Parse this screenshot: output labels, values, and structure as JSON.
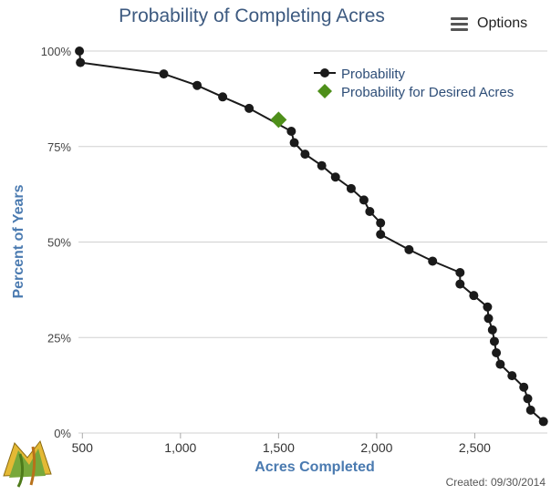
{
  "header": {
    "title": "Probability of Completing Acres",
    "options_label": "Options"
  },
  "footer": {
    "created": "Created: 09/30/2014"
  },
  "colors": {
    "title": "#3d5a80",
    "axis_title": "#4a7ab0",
    "series": "#1a1a1a",
    "desired": "#4e8f1a",
    "grid": "#d0d0d0"
  },
  "chart_data": {
    "type": "line",
    "title": "Probability of Completing Acres",
    "xlabel": "Acres Completed",
    "ylabel": "Percent of Years",
    "xlim": [
      480,
      2870
    ],
    "ylim": [
      0,
      100
    ],
    "x_ticks": [
      500,
      1000,
      1500,
      2000,
      2500
    ],
    "x_tick_labels": [
      "500",
      "1,000",
      "1,500",
      "2,000",
      "2,500"
    ],
    "y_ticks": [
      0,
      25,
      50,
      75,
      100
    ],
    "y_tick_labels": [
      "0%",
      "25%",
      "50%",
      "75%",
      "100%"
    ],
    "grid": "horizontal",
    "legend_position": "top-right",
    "series": [
      {
        "name": "Probability",
        "x": [
          485,
          490,
          915,
          1085,
          1215,
          1350,
          1565,
          1580,
          1635,
          1720,
          1790,
          1870,
          1935,
          1965,
          2020,
          2020,
          2165,
          2285,
          2425,
          2425,
          2495,
          2565,
          2570,
          2590,
          2600,
          2610,
          2630,
          2690,
          2750,
          2770,
          2785,
          2850
        ],
        "y": [
          100,
          97,
          94,
          91,
          88,
          85,
          79,
          76,
          73,
          70,
          67,
          64,
          61,
          58,
          55,
          52,
          48,
          45,
          42,
          39,
          36,
          33,
          30,
          27,
          24,
          21,
          18,
          15,
          12,
          9,
          6,
          3
        ]
      },
      {
        "name": "Probability for Desired Acres",
        "x": [
          1500
        ],
        "y": [
          82
        ]
      }
    ]
  }
}
